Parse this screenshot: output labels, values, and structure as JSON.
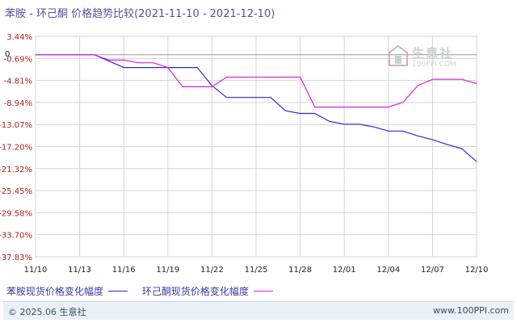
{
  "title": "苯胺 - 环己酮 价格趋势比较(2021-11-10 - 2021-12-10)",
  "watermark": {
    "name": "生意社",
    "url": "100PPI.COM"
  },
  "chart_data": {
    "type": "line",
    "title": "苯胺 - 环己酮 价格趋势比较(2021-11-10 - 2021-12-10)",
    "xlabel": "",
    "ylabel": "",
    "x_tick_labels": [
      "11/10",
      "11/13",
      "11/16",
      "11/19",
      "11/22",
      "11/25",
      "11/28",
      "12/01",
      "12/04",
      "12/07",
      "12/10"
    ],
    "y_tick_labels": [
      "3.44%",
      "-0.69%",
      "-4.81%",
      "-8.94%",
      "-13.07%",
      "-17.20%",
      "-21.32%",
      "-25.45%",
      "-29.58%",
      "-33.70%",
      "-37.83%"
    ],
    "y_ticks": [
      3.44,
      -0.69,
      -4.81,
      -8.94,
      -13.07,
      -17.2,
      -21.32,
      -25.45,
      -29.58,
      -33.7,
      -37.83
    ],
    "ylim": [
      -37.83,
      3.44
    ],
    "xlim_days": [
      0,
      30
    ],
    "zero_label": "0",
    "grid": true,
    "legend_position": "bottom",
    "series": [
      {
        "name": "苯胺现货价格变化幅度",
        "color": "#2b2bd6",
        "x": [
          0,
          4,
          5,
          6,
          9,
          11,
          12,
          13,
          14,
          15,
          16,
          17,
          18,
          19,
          20,
          21,
          22,
          23,
          24,
          25,
          26,
          27,
          28,
          29,
          30
        ],
        "values": [
          0.0,
          0.0,
          -1.2,
          -2.4,
          -2.4,
          -2.4,
          -5.8,
          -8.0,
          -8.0,
          -8.0,
          -8.0,
          -10.5,
          -11.0,
          -11.0,
          -12.5,
          -13.0,
          -13.0,
          -13.5,
          -14.3,
          -14.3,
          -15.2,
          -15.9,
          -16.8,
          -17.6,
          -20.0
        ]
      },
      {
        "name": "环己酮现货价格变化幅度",
        "color": "#e020e0",
        "x": [
          0,
          4,
          5,
          6,
          7,
          8,
          9,
          10,
          11,
          12,
          13,
          14,
          15,
          16,
          17,
          18,
          19,
          20,
          21,
          22,
          23,
          24,
          25,
          26,
          27,
          28,
          29,
          30
        ],
        "values": [
          0.0,
          0.0,
          -1.0,
          -1.0,
          -1.5,
          -1.5,
          -2.4,
          -6.0,
          -6.0,
          -6.0,
          -4.2,
          -4.2,
          -4.2,
          -4.2,
          -4.2,
          -4.2,
          -9.8,
          -9.8,
          -9.8,
          -9.8,
          -9.8,
          -9.8,
          -8.9,
          -5.8,
          -4.6,
          -4.6,
          -4.6,
          -5.4
        ]
      }
    ]
  },
  "legend": [
    {
      "label": "苯胺现货价格变化幅度",
      "color": "#2b2bd6"
    },
    {
      "label": "环己酮现货价格变化幅度",
      "color": "#e020e0"
    }
  ],
  "footer": {
    "copyright": "© 2025.06 生意社",
    "url": "www.100PPI.com"
  }
}
